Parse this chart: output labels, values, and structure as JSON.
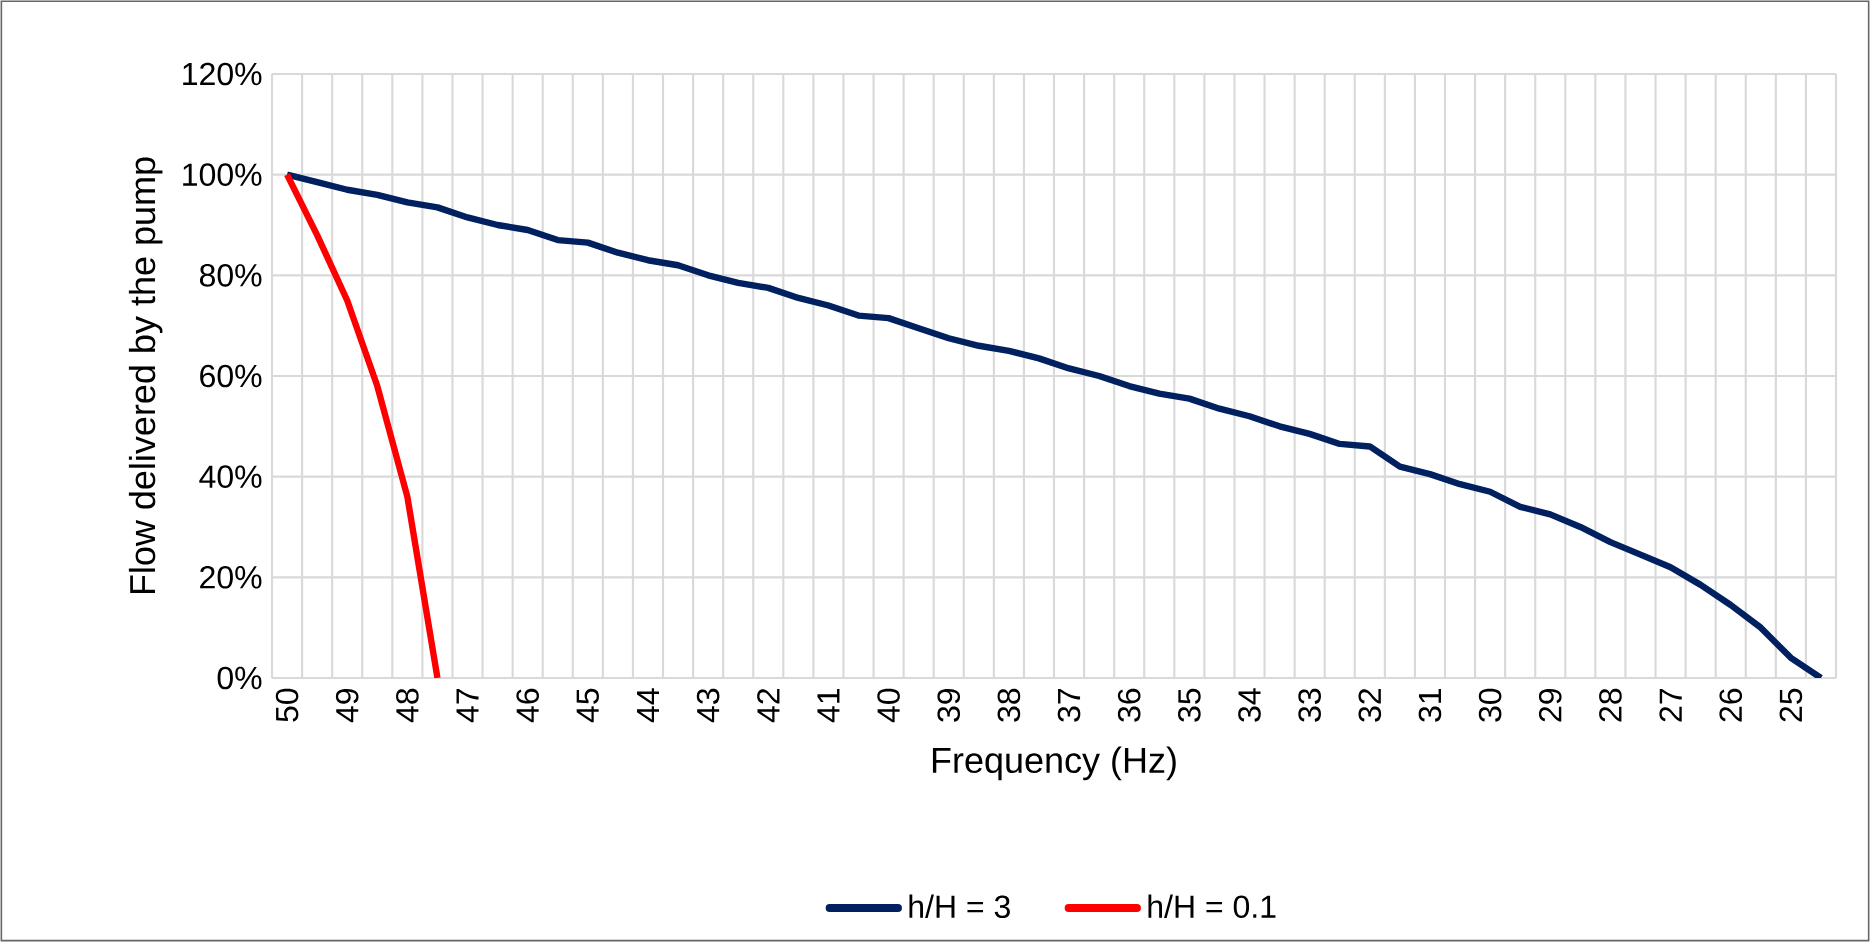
{
  "chart_data": {
    "type": "line",
    "xlabel": "Frequency (Hz)",
    "ylabel": "Flow delivered by the pump",
    "categories": [
      "50",
      null,
      "49",
      null,
      "48",
      null,
      "47",
      null,
      "46",
      null,
      "45",
      null,
      "44",
      null,
      "43",
      null,
      "42",
      null,
      "41",
      null,
      "40",
      null,
      "39",
      null,
      "38",
      null,
      "37",
      null,
      "36",
      null,
      "35",
      null,
      "34",
      null,
      "33",
      null,
      "32",
      null,
      "31",
      null,
      "30",
      null,
      "29",
      null,
      "28",
      null,
      "27",
      null,
      "26",
      null,
      "25",
      null
    ],
    "series": [
      {
        "name": "h/H = 3",
        "color": "#002060",
        "values": [
          100,
          98.5,
          97,
          96,
          94.5,
          93.5,
          91.5,
          90,
          89,
          87,
          86.5,
          84.5,
          83,
          82,
          80,
          78.5,
          77.5,
          75.5,
          74,
          72,
          71.5,
          69.5,
          67.5,
          66,
          65,
          63.5,
          61.5,
          60,
          58,
          56.5,
          55.5,
          53.5,
          52,
          50,
          48.5,
          46.5,
          46,
          42,
          40.5,
          38.5,
          37,
          34,
          32.5,
          30,
          27,
          24.5,
          22,
          18.5,
          14.5,
          10,
          4,
          0
        ]
      },
      {
        "name": "h/H = 0.1",
        "color": "#ff0000",
        "values": [
          100,
          88,
          75,
          58,
          36,
          0,
          null,
          null,
          null,
          null,
          null,
          null,
          null,
          null,
          null,
          null,
          null,
          null,
          null,
          null,
          null,
          null,
          null,
          null,
          null,
          null,
          null,
          null,
          null,
          null,
          null,
          null,
          null,
          null,
          null,
          null,
          null,
          null,
          null,
          null,
          null,
          null,
          null,
          null,
          null,
          null,
          null,
          null,
          null,
          null,
          null,
          null
        ]
      }
    ],
    "ylim": [
      0,
      120
    ],
    "yticks": [
      {
        "value": 0,
        "label": "0%"
      },
      {
        "value": 20,
        "label": "20%"
      },
      {
        "value": 40,
        "label": "40%"
      },
      {
        "value": 60,
        "label": "60%"
      },
      {
        "value": 80,
        "label": "80%"
      },
      {
        "value": 100,
        "label": "100%"
      },
      {
        "value": 120,
        "label": "120%"
      }
    ],
    "grid": true,
    "legend": "bottom",
    "marker": "none",
    "line_style": "solid"
  }
}
